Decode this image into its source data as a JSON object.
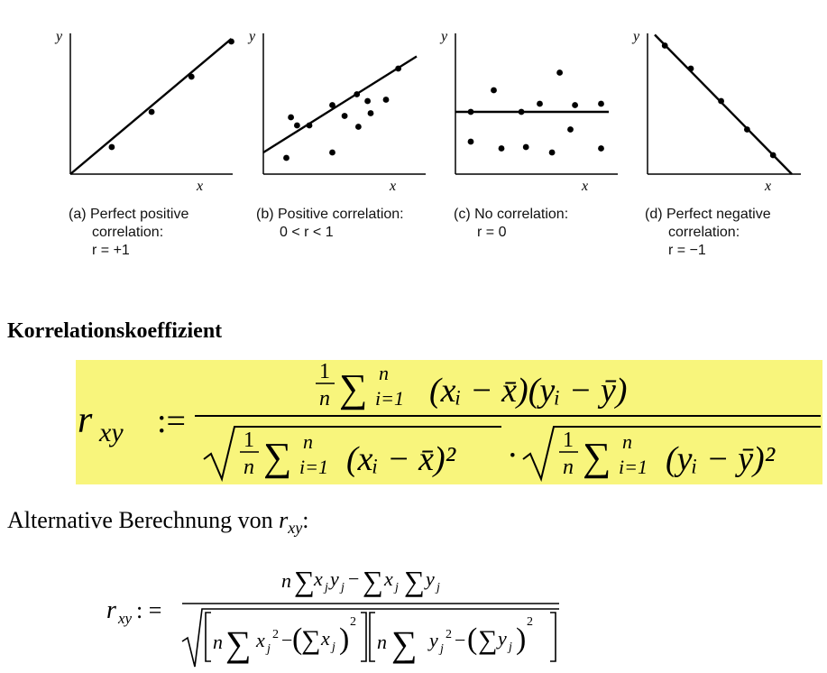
{
  "figure": {
    "panels": [
      {
        "axis_y": "y",
        "axis_x": "x",
        "caption_lines": [
          "(a) Perfect positive",
          "correlation:",
          "r = +1"
        ]
      },
      {
        "axis_y": "y",
        "axis_x": "x",
        "caption_lines": [
          "(b) Positive correlation:",
          "0 < r < 1"
        ]
      },
      {
        "axis_y": "y",
        "axis_x": "x",
        "caption_lines": [
          "(c) No correlation:",
          "r = 0"
        ]
      },
      {
        "axis_y": "y",
        "axis_x": "x",
        "caption_lines": [
          "(d) Perfect negative",
          "correlation:",
          "r = −1"
        ]
      }
    ]
  },
  "heading": "Korrelationskoeffizient",
  "formula_main": {
    "lhs": "r",
    "lhs_sub": "xy",
    "assign": ":=",
    "one": "1",
    "n": "n",
    "sum": "∑",
    "sum_lower": "i=1",
    "sum_upper": "n",
    "numer_terms": "(xᵢ − x̄)(yᵢ − ȳ)",
    "denom_x_term": "(xᵢ − x̄)²",
    "denom_y_term": "(yᵢ − ȳ)²",
    "dot": "·"
  },
  "alt_heading": "Alternative Berechnung von",
  "alt_symbol": "r",
  "alt_symbol_sub": "xy",
  "alt_colon": ":",
  "formula_alt": {
    "lhs": "r",
    "lhs_sub": "xy",
    "assign": ": =",
    "n": "n",
    "sum": "∑",
    "x": "x",
    "y": "y",
    "j": "j",
    "minus": "−",
    "sq": "2"
  },
  "chart_data": [
    {
      "type": "scatter",
      "title": "(a) Perfect positive correlation: r = +1",
      "xlabel": "x",
      "ylabel": "y",
      "xlim": [
        0,
        10
      ],
      "ylim": [
        0,
        10
      ],
      "points": [
        [
          2.7,
          2.0
        ],
        [
          5.3,
          4.6
        ],
        [
          7.9,
          7.2
        ],
        [
          10.5,
          9.8
        ]
      ],
      "line": [
        [
          0,
          0
        ],
        [
          10.5,
          10
        ]
      ]
    },
    {
      "type": "scatter",
      "title": "(b) Positive correlation: 0 < r < 1",
      "xlabel": "x",
      "ylabel": "y",
      "xlim": [
        0,
        10
      ],
      "ylim": [
        0,
        10
      ],
      "points": [
        [
          1.5,
          1.2
        ],
        [
          1.8,
          4.2
        ],
        [
          2.2,
          3.6
        ],
        [
          3.0,
          3.6
        ],
        [
          4.5,
          1.6
        ],
        [
          4.5,
          5.1
        ],
        [
          5.3,
          4.3
        ],
        [
          6.1,
          5.9
        ],
        [
          6.2,
          3.5
        ],
        [
          6.8,
          5.4
        ],
        [
          7.0,
          4.5
        ],
        [
          8.0,
          5.5
        ],
        [
          8.8,
          7.8
        ]
      ],
      "line": [
        [
          0,
          1.6
        ],
        [
          10,
          8.7
        ]
      ]
    },
    {
      "type": "scatter",
      "title": "(c) No correlation: r = 0",
      "xlabel": "x",
      "ylabel": "y",
      "xlim": [
        0,
        10
      ],
      "ylim": [
        0,
        10
      ],
      "points": [
        [
          1.0,
          4.6
        ],
        [
          1.0,
          2.4
        ],
        [
          2.5,
          6.2
        ],
        [
          3.0,
          1.9
        ],
        [
          4.3,
          4.6
        ],
        [
          4.6,
          2.0
        ],
        [
          5.5,
          5.2
        ],
        [
          6.3,
          1.6
        ],
        [
          6.8,
          7.5
        ],
        [
          7.5,
          3.3
        ],
        [
          7.8,
          5.1
        ],
        [
          9.5,
          5.2
        ],
        [
          9.5,
          1.9
        ]
      ],
      "line": [
        [
          0,
          4.6
        ],
        [
          10,
          4.6
        ]
      ]
    },
    {
      "type": "scatter",
      "title": "(d) Perfect negative correlation: r = −1",
      "xlabel": "x",
      "ylabel": "y",
      "xlim": [
        0,
        10
      ],
      "ylim": [
        0,
        10
      ],
      "points": [
        [
          1.2,
          9.5
        ],
        [
          3.0,
          7.8
        ],
        [
          5.1,
          5.4
        ],
        [
          6.9,
          3.3
        ],
        [
          8.7,
          1.4
        ]
      ],
      "line": [
        [
          0.5,
          10.3
        ],
        [
          10,
          0
        ]
      ]
    }
  ]
}
